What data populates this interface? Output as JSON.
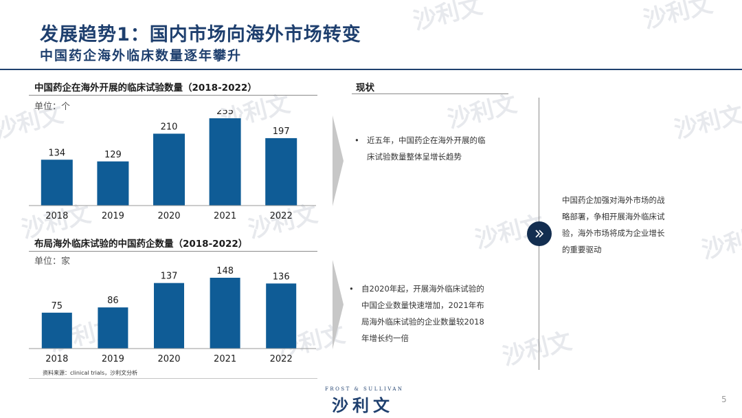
{
  "header": {
    "title": "发展趋势1：国内市场向海外市场转变",
    "subtitle": "中国药企海外临床数量逐年攀升"
  },
  "chart1": {
    "heading": "中国药企在海外开展的临床试验数量（2018-2022）",
    "unit": "单位：个"
  },
  "chart2": {
    "heading": "布局海外临床试验的中国药企数量（2018-2022）",
    "unit": "单位：家"
  },
  "chart_data": [
    {
      "type": "bar",
      "title": "中国药企在海外开展的临床试验数量（2018-2022）",
      "unit": "单位：个",
      "categories": [
        "2018",
        "2019",
        "2020",
        "2021",
        "2022"
      ],
      "values": [
        134,
        129,
        210,
        255,
        197
      ],
      "ylim": [
        0,
        280
      ],
      "grid": false,
      "color": "#0f5c96"
    },
    {
      "type": "bar",
      "title": "布局海外临床试验的中国药企数量（2018-2022）",
      "unit": "单位：家",
      "categories": [
        "2018",
        "2019",
        "2020",
        "2021",
        "2022"
      ],
      "values": [
        75,
        86,
        137,
        148,
        136
      ],
      "ylim": [
        0,
        165
      ],
      "grid": false,
      "color": "#0f5c96"
    }
  ],
  "status": {
    "heading": "现状",
    "bullets": [
      [
        "近五年，中国药企在海外开展的临",
        "床试验数量整体呈增长趋势"
      ],
      [
        "自2020年起，开展海外临床试验的",
        "中国企业数量快速增加，2021年布",
        "局海外临床试验的企业数量较2018",
        "年增长约一倍"
      ]
    ]
  },
  "conclusion": {
    "lines": [
      "中国药企加强对海外市场的战",
      "略部署，争相开展海外临床试",
      "验，海外市场将成为企业增长",
      "的重要驱动"
    ]
  },
  "footer": {
    "source": "资料来源：clinical trials，沙利文分析",
    "logo_en": "FROST & SULLIVAN",
    "logo_cn": "沙利文",
    "page": "5"
  },
  "watermark": {
    "cn": "沙利文",
    "en": "FROST & SULLIVAN"
  },
  "colors": {
    "brand": "#1e3f6e",
    "bar": "#0f5c96",
    "arrow": "#c7c7c7"
  },
  "icons": {
    "conclusion": "double-chevron-right-icon"
  }
}
